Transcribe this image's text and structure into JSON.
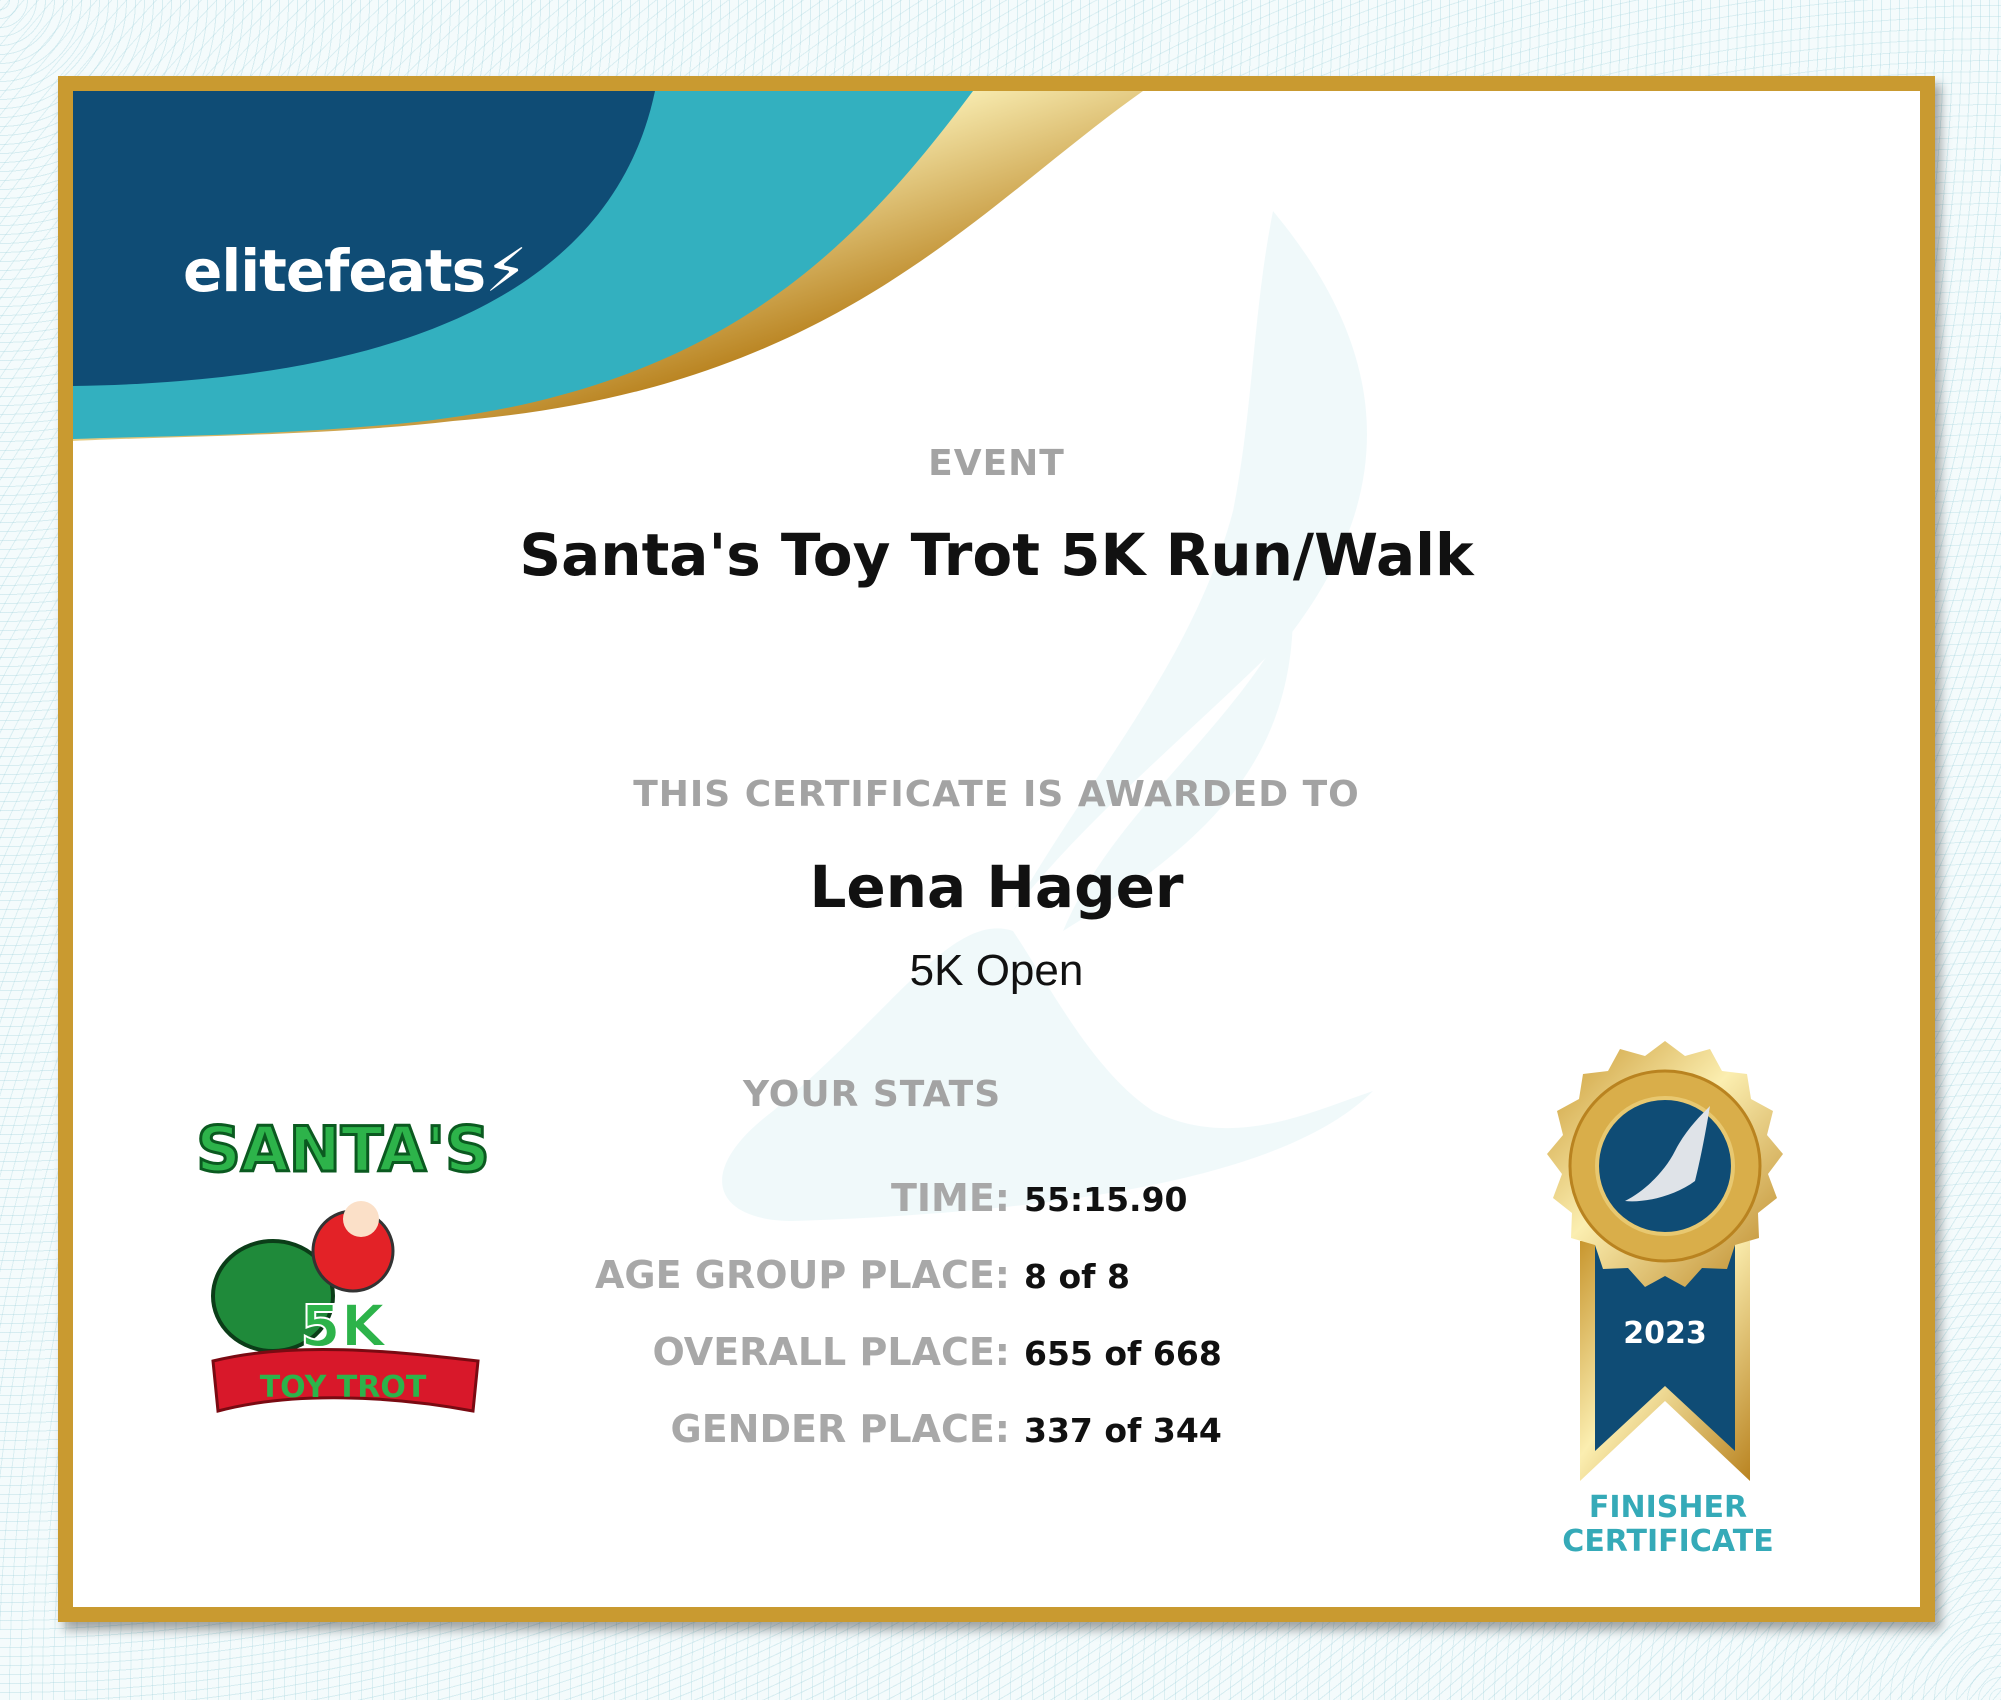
{
  "brand": {
    "name": "elitefeats",
    "icon": "winged-foot-icon"
  },
  "event": {
    "label": "EVENT",
    "name": "Santa's Toy Trot 5K Run/Walk"
  },
  "award": {
    "label": "THIS CERTIFICATE IS AWARDED TO",
    "name": "Lena Hager",
    "division": "5K Open"
  },
  "stats": {
    "label": "YOUR STATS",
    "rows": [
      {
        "label": "TIME:",
        "value": "55:15.90"
      },
      {
        "label": "AGE GROUP PLACE:",
        "value": "8 of 8"
      },
      {
        "label": "OVERALL PLACE:",
        "value": "655 of 668"
      },
      {
        "label": "GENDER PLACE:",
        "value": "337 of 344"
      }
    ]
  },
  "event_logo": {
    "text": "SANTA'S 5K TOY TROT"
  },
  "medal": {
    "year": "2023",
    "line1": "FINISHER",
    "line2": "CERTIFICATE"
  },
  "colors": {
    "navy": "#0f4c75",
    "teal": "#33b0bf",
    "gold": "#c99a30"
  }
}
